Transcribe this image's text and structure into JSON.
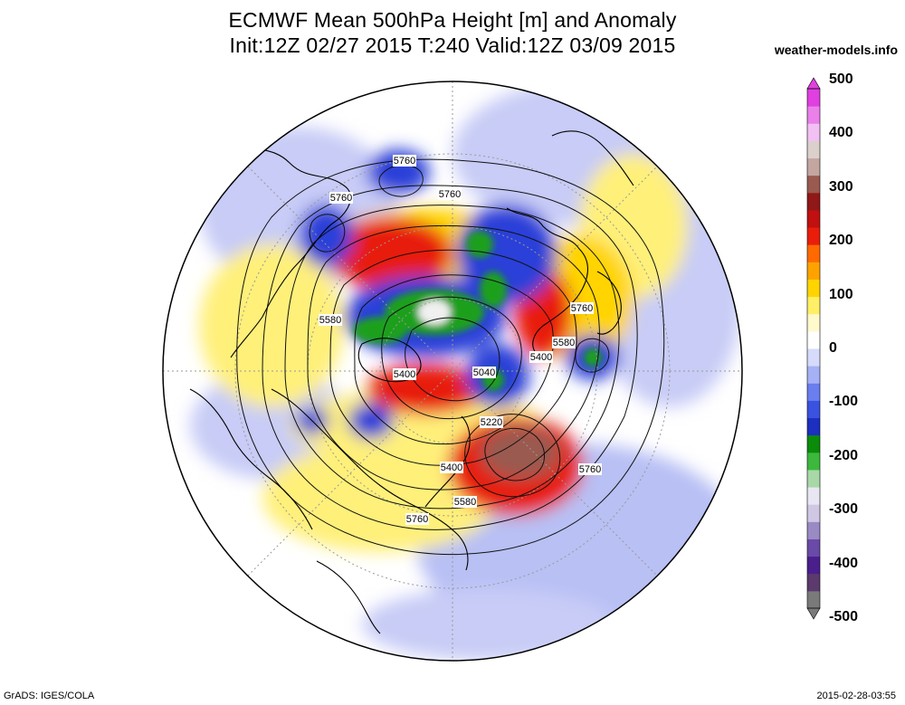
{
  "title_line1": "ECMWF Mean 500hPa Height [m] and Anomaly",
  "title_line2": "Init:12Z 02/27 2015 T:240 Valid:12Z 03/09 2015",
  "source": "weather-models.info",
  "footer_left": "GrADS: IGES/COLA",
  "footer_right": "2015-02-28-03:55",
  "colorbar": {
    "ticks": [
      "500",
      "400",
      "300",
      "200",
      "100",
      "0",
      "-100",
      "-200",
      "-300",
      "-400",
      "-500"
    ],
    "colors": [
      "#7a7a7a",
      "#5c3a6e",
      "#4a1f8c",
      "#6a4aa8",
      "#9a8ac4",
      "#cfc7e4",
      "#e8e6f2",
      "#a8d8a8",
      "#3cb83c",
      "#0a8c0a",
      "#1c2fbf",
      "#3a52e0",
      "#6a7eef",
      "#a6b1f5",
      "#d6dbfb",
      "#ffffff",
      "#fffacc",
      "#ffef66",
      "#ffd400",
      "#ffa200",
      "#ff6a00",
      "#e81e0a",
      "#c01010",
      "#901818",
      "#9a5a50",
      "#c4a6a0",
      "#dcd0cc",
      "#f2c0f2",
      "#ea80ea",
      "#e040e0"
    ]
  },
  "contour_labels": [
    {
      "text": "5760",
      "id": "label-5760-a"
    },
    {
      "text": "5760",
      "id": "label-5760-b"
    },
    {
      "text": "5760",
      "id": "label-5760-c"
    },
    {
      "text": "5580",
      "id": "label-5580-a"
    },
    {
      "text": "5760",
      "id": "label-5760-d"
    },
    {
      "text": "5580",
      "id": "label-5580-b"
    },
    {
      "text": "5400",
      "id": "label-5400-a"
    },
    {
      "text": "5400",
      "id": "label-5400-b"
    },
    {
      "text": "5040",
      "id": "label-5040"
    },
    {
      "text": "5220",
      "id": "label-5220"
    },
    {
      "text": "5400",
      "id": "label-5400-c"
    },
    {
      "text": "5580",
      "id": "label-5580-c"
    },
    {
      "text": "5760",
      "id": "label-5760-e"
    },
    {
      "text": "5760",
      "id": "label-5760-f"
    }
  ]
}
